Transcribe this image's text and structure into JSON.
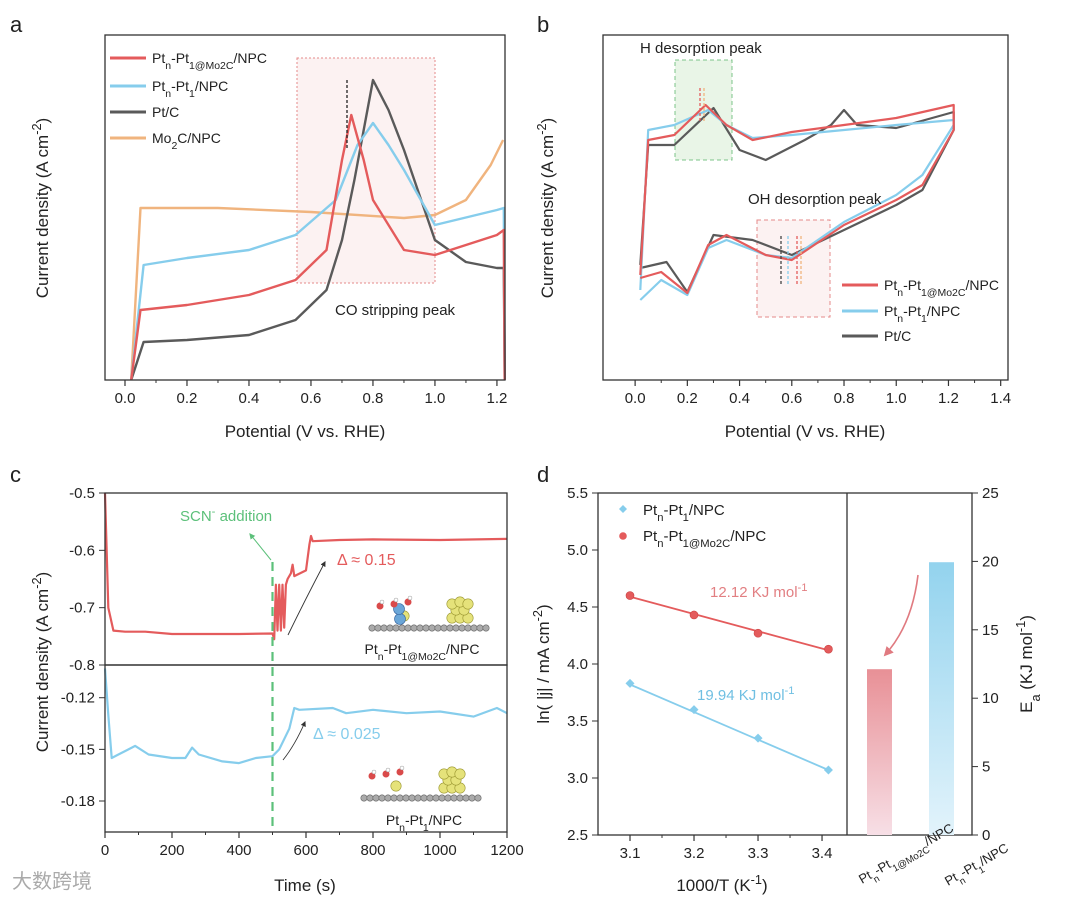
{
  "colors": {
    "red": "#e45b5c",
    "blue": "#86cdec",
    "gray": "#5a5a5a",
    "orange": "#f0b47e",
    "green": "#5cc07a"
  },
  "watermark": "大数跨境",
  "chart_data": [
    {
      "panel": "a",
      "type": "line",
      "xlabel": "Potential (V vs. RHE)",
      "ylabel": "Current density (A cm^{-2})",
      "xlim": [
        -0.0645,
        1.226
      ],
      "ylim": [
        0,
        345
      ],
      "xticks": [
        0.0,
        0.2,
        0.4,
        0.6,
        0.8,
        1.0,
        1.2
      ],
      "xtick_labels": [
        "0.0",
        "0.2",
        "0.4",
        "0.6",
        "0.8",
        "1.0",
        "1.2"
      ],
      "annotation": "CO stripping peak",
      "legend_position": "top-left",
      "series": [
        {
          "name": "Pt_{n}-Pt_{1@Mo2C}/NPC",
          "color": "red",
          "points": [
            [
              0.02,
              0
            ],
            [
              0.05,
              70
            ],
            [
              0.2,
              75
            ],
            [
              0.4,
              85
            ],
            [
              0.55,
              100
            ],
            [
              0.65,
              130
            ],
            [
              0.7,
              220
            ],
            [
              0.73,
              265
            ],
            [
              0.77,
              220
            ],
            [
              0.8,
              180
            ],
            [
              0.9,
              130
            ],
            [
              1.0,
              125
            ],
            [
              1.2,
              145
            ],
            [
              1.222,
              150
            ],
            [
              1.225,
              0
            ]
          ]
        },
        {
          "name": "Pt_{n}-Pt_{1}/NPC",
          "color": "blue",
          "points": [
            [
              0.02,
              0
            ],
            [
              0.06,
              115
            ],
            [
              0.2,
              122
            ],
            [
              0.4,
              130
            ],
            [
              0.55,
              145
            ],
            [
              0.68,
              180
            ],
            [
              0.75,
              235
            ],
            [
              0.8,
              257
            ],
            [
              0.85,
              235
            ],
            [
              0.9,
              210
            ],
            [
              1.0,
              155
            ],
            [
              1.2,
              170
            ],
            [
              1.222,
              172
            ],
            [
              1.225,
              0
            ]
          ]
        },
        {
          "name": "Pt/C",
          "color": "gray",
          "points": [
            [
              0.02,
              0
            ],
            [
              0.06,
              38
            ],
            [
              0.2,
              40
            ],
            [
              0.4,
              45
            ],
            [
              0.55,
              60
            ],
            [
              0.65,
              90
            ],
            [
              0.7,
              140
            ],
            [
              0.74,
              200
            ],
            [
              0.8,
              300
            ],
            [
              0.85,
              270
            ],
            [
              0.9,
              230
            ],
            [
              1.0,
              140
            ],
            [
              1.1,
              118
            ],
            [
              1.2,
              112
            ],
            [
              1.222,
              112
            ],
            [
              1.225,
              0
            ]
          ]
        },
        {
          "name": "Mo_{2}C/NPC",
          "color": "orange",
          "points": [
            [
              0.02,
              0
            ],
            [
              0.05,
              172
            ],
            [
              0.3,
              172
            ],
            [
              0.6,
              168
            ],
            [
              0.9,
              162
            ],
            [
              1.0,
              165
            ],
            [
              1.1,
              180
            ],
            [
              1.18,
              215
            ],
            [
              1.22,
              240
            ]
          ]
        }
      ]
    },
    {
      "panel": "b",
      "type": "line",
      "xlabel": "Potential (V vs. RHE)",
      "ylabel": "Current density (A cm^{-2})",
      "xlim": [
        -0.123,
        1.428
      ],
      "ylim": [
        0,
        345
      ],
      "xticks": [
        0.0,
        0.2,
        0.4,
        0.6,
        0.8,
        1.0,
        1.2,
        1.4
      ],
      "xtick_labels": [
        "0.0",
        "0.2",
        "0.4",
        "0.6",
        "0.8",
        "1.0",
        "1.2",
        "1.4"
      ],
      "annotations": [
        "H desorption peak",
        "OH desorption peak"
      ],
      "legend_position": "bottom-right",
      "series": [
        {
          "name": "Pt_{n}-Pt_{1@Mo2C}/NPC",
          "color": "red",
          "points": [
            [
              0.02,
              105
            ],
            [
              0.05,
              240
            ],
            [
              0.15,
              245
            ],
            [
              0.27,
              275
            ],
            [
              0.35,
              255
            ],
            [
              0.45,
              240
            ],
            [
              0.6,
              248
            ],
            [
              0.8,
              255
            ],
            [
              1.0,
              262
            ],
            [
              1.22,
              275
            ],
            [
              1.22,
              250
            ],
            [
              1.1,
              195
            ],
            [
              1.0,
              180
            ],
            [
              0.8,
              155
            ],
            [
              0.6,
              120
            ],
            [
              0.5,
              125
            ],
            [
              0.35,
              145
            ],
            [
              0.28,
              135
            ],
            [
              0.2,
              87
            ],
            [
              0.1,
              108
            ],
            [
              0.02,
              102
            ]
          ]
        },
        {
          "name": "Pt_{n}-Pt_{1}/NPC",
          "color": "blue",
          "points": [
            [
              0.02,
              90
            ],
            [
              0.05,
              250
            ],
            [
              0.15,
              255
            ],
            [
              0.28,
              270
            ],
            [
              0.35,
              255
            ],
            [
              0.45,
              242
            ],
            [
              0.6,
              245
            ],
            [
              0.8,
              250
            ],
            [
              1.0,
              255
            ],
            [
              1.22,
              260
            ],
            [
              1.22,
              255
            ],
            [
              1.1,
              205
            ],
            [
              1.0,
              185
            ],
            [
              0.8,
              158
            ],
            [
              0.6,
              122
            ],
            [
              0.5,
              125
            ],
            [
              0.35,
              140
            ],
            [
              0.28,
              132
            ],
            [
              0.2,
              85
            ],
            [
              0.1,
              100
            ],
            [
              0.02,
              80
            ]
          ]
        },
        {
          "name": "Pt/C",
          "color": "gray",
          "points": [
            [
              0.02,
              115
            ],
            [
              0.05,
              235
            ],
            [
              0.15,
              235
            ],
            [
              0.3,
              272
            ],
            [
              0.4,
              230
            ],
            [
              0.5,
              220
            ],
            [
              0.65,
              240
            ],
            [
              0.75,
              255
            ],
            [
              0.8,
              270
            ],
            [
              0.85,
              255
            ],
            [
              1.0,
              252
            ],
            [
              1.22,
              268
            ],
            [
              1.22,
              250
            ],
            [
              1.1,
              190
            ],
            [
              1.0,
              175
            ],
            [
              0.8,
              150
            ],
            [
              0.6,
              125
            ],
            [
              0.45,
              140
            ],
            [
              0.3,
              145
            ],
            [
              0.2,
              88
            ],
            [
              0.12,
              118
            ],
            [
              0.02,
              112
            ]
          ]
        }
      ]
    },
    {
      "panel": "c",
      "type": "line",
      "xlabel": "Time (s)",
      "ylabel": "Current density (A cm^{-2})",
      "xlim": [
        0,
        1200
      ],
      "xticks": [
        0,
        200,
        400,
        600,
        800,
        1000,
        1200
      ],
      "xtick_labels": [
        "0",
        "200",
        "400",
        "600",
        "800",
        "1000",
        "1200"
      ],
      "annotation_event": "SCN^{-} addition",
      "event_time": 500,
      "top": {
        "ylim": [
          -0.8,
          -0.5
        ],
        "yticks": [
          -0.5,
          -0.6,
          -0.7,
          -0.8
        ],
        "ytick_labels": [
          "-0.5",
          "-0.6",
          "-0.7",
          "-0.8"
        ],
        "delta_label": "Δ ≈ 0.15",
        "inset_label": "Pt_{n}-Pt_{1@Mo2C}/NPC",
        "series": {
          "name": "Pt_{n}-Pt_{1@Mo2C}/NPC",
          "color": "red",
          "points": [
            [
              0,
              -0.5
            ],
            [
              10,
              -0.7
            ],
            [
              25,
              -0.74
            ],
            [
              60,
              -0.742
            ],
            [
              120,
              -0.742
            ],
            [
              200,
              -0.746
            ],
            [
              400,
              -0.746
            ],
            [
              500,
              -0.745
            ],
            [
              505,
              -0.755
            ],
            [
              510,
              -0.66
            ],
            [
              515,
              -0.74
            ],
            [
              520,
              -0.66
            ],
            [
              525,
              -0.74
            ],
            [
              530,
              -0.66
            ],
            [
              535,
              -0.735
            ],
            [
              540,
              -0.66
            ],
            [
              545,
              -0.65
            ],
            [
              555,
              -0.64
            ],
            [
              560,
              -0.625
            ],
            [
              565,
              -0.645
            ],
            [
              600,
              -0.635
            ],
            [
              610,
              -0.59
            ],
            [
              615,
              -0.575
            ],
            [
              620,
              -0.584
            ],
            [
              700,
              -0.582
            ],
            [
              800,
              -0.581
            ],
            [
              1000,
              -0.582
            ],
            [
              1200,
              -0.58
            ]
          ]
        }
      },
      "bottom": {
        "ylim": [
          -0.198,
          -0.101
        ],
        "yticks": [
          -0.12,
          -0.15,
          -0.18
        ],
        "ytick_labels": [
          "-0.12",
          "-0.15",
          "-0.18"
        ],
        "delta_label": "Δ ≈ 0.025",
        "inset_label": "Pt_{n}-Pt_{1}/NPC",
        "series": {
          "name": "Pt_{n}-Pt_{1}/NPC",
          "color": "blue",
          "points": [
            [
              0,
              -0.103
            ],
            [
              10,
              -0.13
            ],
            [
              20,
              -0.155
            ],
            [
              40,
              -0.153
            ],
            [
              90,
              -0.148
            ],
            [
              130,
              -0.153
            ],
            [
              200,
              -0.155
            ],
            [
              240,
              -0.155
            ],
            [
              260,
              -0.149
            ],
            [
              280,
              -0.153
            ],
            [
              350,
              -0.157
            ],
            [
              400,
              -0.158
            ],
            [
              450,
              -0.155
            ],
            [
              500,
              -0.154
            ],
            [
              520,
              -0.15
            ],
            [
              550,
              -0.138
            ],
            [
              565,
              -0.126
            ],
            [
              580,
              -0.127
            ],
            [
              680,
              -0.126
            ],
            [
              720,
              -0.129
            ],
            [
              800,
              -0.127
            ],
            [
              900,
              -0.129
            ],
            [
              1000,
              -0.128
            ],
            [
              1100,
              -0.131
            ],
            [
              1170,
              -0.126
            ],
            [
              1200,
              -0.129
            ]
          ]
        }
      }
    },
    {
      "panel": "d",
      "type": "scatter+bar",
      "xlabel": "1000/T (K^{-1})",
      "ylabel": "ln( |j| / mA cm^{-2})",
      "y2label": "E_{a} (KJ mol^{-1})",
      "xlim": [
        3.05,
        3.439
      ],
      "ylim": [
        2.5,
        5.5
      ],
      "y2lim": [
        0,
        25
      ],
      "xticks": [
        3.1,
        3.2,
        3.3,
        3.4
      ],
      "xtick_labels": [
        "3.1",
        "3.2",
        "3.3",
        "3.4"
      ],
      "yticks": [
        2.5,
        3.0,
        3.5,
        4.0,
        4.5,
        5.0,
        5.5
      ],
      "ytick_labels": [
        "2.5",
        "3.0",
        "3.5",
        "4.0",
        "4.5",
        "5.0",
        "5.5"
      ],
      "y2ticks": [
        0,
        5,
        10,
        15,
        20,
        25
      ],
      "y2tick_labels": [
        "0",
        "5",
        "10",
        "15",
        "20",
        "25"
      ],
      "legend_position": "top-left",
      "series": [
        {
          "name": "Pt_{n}-Pt_{1}/NPC",
          "color": "blue",
          "marker": "diamond",
          "x": [
            3.1,
            3.2,
            3.3,
            3.41
          ],
          "y": [
            3.83,
            3.6,
            3.35,
            3.07
          ],
          "fit": [
            [
              3.1,
              3.82
            ],
            [
              3.41,
              3.07
            ]
          ],
          "label": "19.94 KJ mol^{-1}"
        },
        {
          "name": "Pt_{n}-Pt_{1@Mo2C}/NPC",
          "color": "red",
          "marker": "circle",
          "x": [
            3.1,
            3.2,
            3.3,
            3.41
          ],
          "y": [
            4.6,
            4.43,
            4.27,
            4.13
          ],
          "fit": [
            [
              3.1,
              4.59
            ],
            [
              3.41,
              4.12
            ]
          ],
          "label": "12.12 KJ mol^{-1}"
        }
      ],
      "bars": {
        "categories": [
          "Pt_{n}-Pt_{1@Mo2C}/NPC",
          "Pt_{n}-Pt_{1}/NPC"
        ],
        "values": [
          12.12,
          19.94
        ],
        "colors": [
          "red",
          "blue"
        ]
      }
    }
  ],
  "panel_letters": [
    "a",
    "b",
    "c",
    "d"
  ]
}
